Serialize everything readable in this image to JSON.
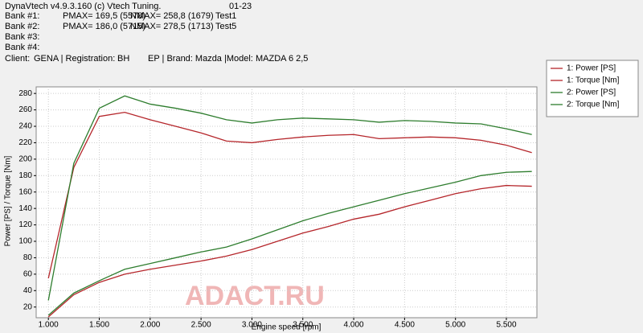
{
  "header": {
    "title": "DynaVtech v4.9.3.160 (c) Vtech Tuning.",
    "date": "01-23",
    "banks": [
      [
        "Bank #1:",
        "PMAX= 169,5 (5578)",
        "NMAX= 258,8 (1679)",
        "Test1"
      ],
      [
        "Bank #2:",
        "PMAX= 186,0 (5715)",
        "NMAX= 278,5 (1713)",
        "Test5"
      ],
      [
        "Bank #3:"
      ],
      [
        "Bank #4:"
      ]
    ],
    "client": [
      "Client:",
      "GENA | Registration:",
      "BH",
      "EP | Brand: Mazda |Model:",
      "MAZDA 6 2,5"
    ]
  },
  "watermark": "ADACT.RU",
  "chart_data": {
    "type": "line",
    "x_label": "Engine speed [rpm]",
    "y_label": "Power [PS] / Torque [Nm]",
    "x": [
      1000,
      1250,
      1500,
      1750,
      2000,
      2250,
      2500,
      2750,
      3000,
      3250,
      3500,
      3750,
      4000,
      4250,
      4500,
      4750,
      5000,
      5250,
      5500,
      5750
    ],
    "series": [
      {
        "name": "1: Power [PS]",
        "color": "#b5262b",
        "values": [
          8,
          35,
          50,
          60,
          66,
          71,
          76,
          82,
          90,
          100,
          110,
          118,
          127,
          133,
          142,
          150,
          158,
          164,
          168,
          167
        ]
      },
      {
        "name": "1: Torque [Nm]",
        "color": "#b5262b",
        "values": [
          55,
          190,
          252,
          257,
          248,
          240,
          232,
          222,
          220,
          224,
          227,
          229,
          230,
          225,
          226,
          227,
          226,
          223,
          217,
          208
        ]
      },
      {
        "name": "2: Power [PS]",
        "color": "#2e7d2e",
        "values": [
          10,
          37,
          52,
          66,
          73,
          80,
          87,
          93,
          103,
          114,
          125,
          134,
          142,
          150,
          158,
          165,
          172,
          180,
          184,
          185
        ]
      },
      {
        "name": "2: Torque [Nm]",
        "color": "#2e7d2e",
        "values": [
          28,
          195,
          262,
          277,
          267,
          262,
          256,
          248,
          244,
          248,
          250,
          249,
          248,
          245,
          247,
          246,
          244,
          243,
          237,
          230
        ]
      }
    ],
    "xlim": [
      880,
      5800
    ],
    "ylim": [
      7,
      288
    ],
    "xticks": [
      {
        "value": 1000,
        "label": "1.000"
      },
      {
        "value": 1500,
        "label": "1.500"
      },
      {
        "value": 2000,
        "label": "2.000"
      },
      {
        "value": 2500,
        "label": "2.500"
      },
      {
        "value": 3000,
        "label": "3.000"
      },
      {
        "value": 3500,
        "label": "3.500"
      },
      {
        "value": 4000,
        "label": "4.000"
      },
      {
        "value": 4500,
        "label": "4.500"
      },
      {
        "value": 5000,
        "label": "5.000"
      },
      {
        "value": 5500,
        "label": "5.500"
      }
    ],
    "yticks": [
      20,
      40,
      60,
      80,
      100,
      120,
      140,
      160,
      180,
      200,
      220,
      240,
      260,
      280
    ],
    "grid": true,
    "legend": "top-right"
  }
}
